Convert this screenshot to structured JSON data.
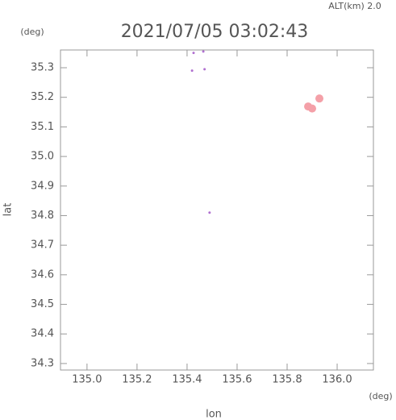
{
  "chart_data": {
    "type": "scatter",
    "title": "2021/07/05 03:02:43",
    "subtitle": "ALT(km) 2.0",
    "x_label": "lon",
    "y_label": "lat",
    "x_unit": "(deg)",
    "y_unit": "(deg)",
    "xlim": [
      134.894,
      136.145
    ],
    "ylim": [
      34.278,
      35.36
    ],
    "xticks": [
      {
        "value": 135,
        "label": "135.0"
      },
      135.2,
      135.4,
      135.6,
      135.8,
      {
        "value": 136,
        "label": "136.0"
      }
    ],
    "yticks": [
      34.3,
      34.4,
      34.5,
      34.6,
      34.7,
      34.8,
      34.9,
      {
        "value": 35,
        "label": "35.0"
      },
      35.1,
      35.2,
      35.3
    ],
    "series": [
      {
        "color": "#f4a0a8",
        "x": [
          135.884,
          135.9,
          135.929
        ],
        "values": [
          35.169,
          35.162,
          35.196
        ]
      },
      {
        "color": "#b070d0",
        "x": [
          135.426,
          135.465,
          135.42,
          135.47,
          135.49
        ],
        "values": [
          35.35,
          35.355,
          35.29,
          35.295,
          34.81
        ]
      }
    ]
  }
}
